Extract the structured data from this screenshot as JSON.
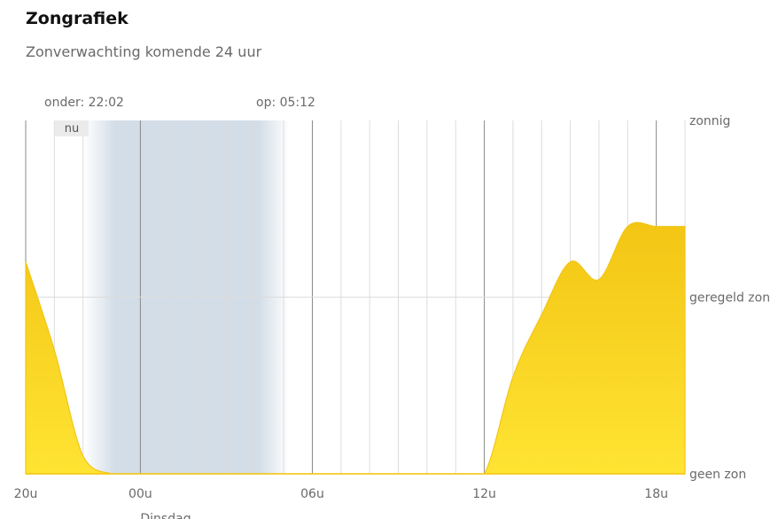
{
  "header": {
    "title": "Zongrafiek",
    "subtitle": "Zonverwachting komende 24 uur"
  },
  "sun": {
    "sunset_label": "onder: 22:02",
    "sunrise_label": "op: 05:12",
    "sunset_hour": 22.03,
    "sunrise_hour": 29.2
  },
  "now_label": "nu",
  "day_label": "Dinsdag",
  "colors": {
    "sun_fill_top": "#f3c514",
    "sun_fill_bottom": "#ffe433",
    "night_band": "#d3dde7",
    "grid_major": "#888888",
    "grid_minor": "#dcdcdc"
  },
  "chart_data": {
    "type": "area",
    "title": "Zonverwachting komende 24 uur",
    "x_unit": "uur",
    "x_range": [
      20,
      43
    ],
    "y_range": [
      0,
      2
    ],
    "x_tick_labels": [
      {
        "hour": 20,
        "label": "20u"
      },
      {
        "hour": 24,
        "label": "00u"
      },
      {
        "hour": 30,
        "label": "06u"
      },
      {
        "hour": 36,
        "label": "12u"
      },
      {
        "hour": 42,
        "label": "18u"
      }
    ],
    "y_tick_labels": [
      {
        "value": 2,
        "label": "zonnig"
      },
      {
        "value": 1,
        "label": "geregeld zon"
      },
      {
        "value": 0,
        "label": "geen zon"
      }
    ],
    "series": [
      {
        "x": [
          20,
          21,
          22,
          23,
          24,
          25,
          26,
          27,
          28,
          29,
          30,
          31,
          32,
          33,
          34,
          35,
          36,
          37,
          38,
          39,
          40,
          41,
          42,
          43
        ],
        "values": [
          1.2,
          0.7,
          0.1,
          0.0,
          0.0,
          0.0,
          0.0,
          0.0,
          0.0,
          0.0,
          0.0,
          0.0,
          0.0,
          0.0,
          0.0,
          0.0,
          0.0,
          0.55,
          0.9,
          1.2,
          1.1,
          1.4,
          1.4,
          1.4
        ]
      }
    ],
    "grid": true
  }
}
